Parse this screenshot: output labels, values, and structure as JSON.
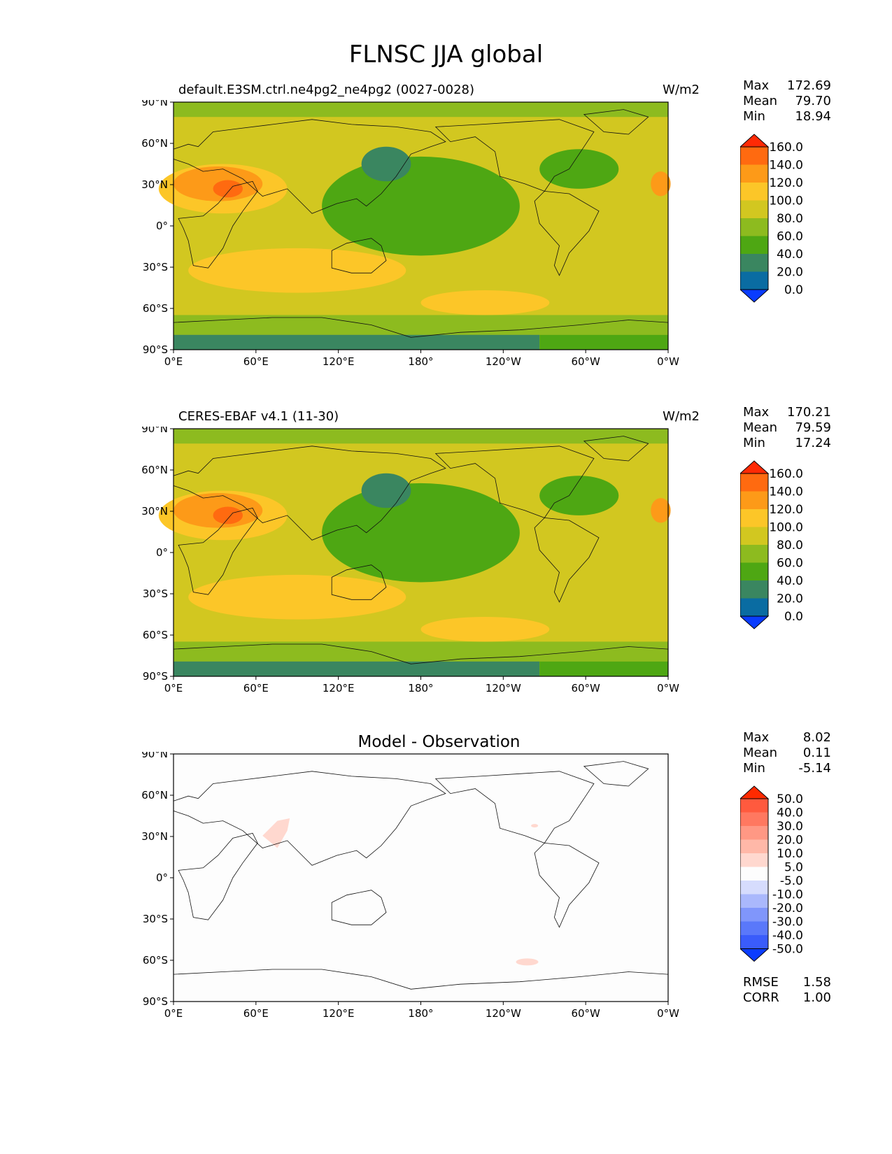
{
  "title": "FLNSC JJA global",
  "axes": {
    "lat_labels": [
      "90°N",
      "60°N",
      "30°N",
      "0°",
      "30°S",
      "60°S",
      "90°S"
    ],
    "lon_labels": [
      "0°E",
      "60°E",
      "120°E",
      "180°",
      "120°W",
      "60°W",
      "0°W"
    ]
  },
  "panels": [
    {
      "id": "model",
      "left_title": "default.E3SM.ctrl.ne4pg2_ne4pg2 (0027-0028)",
      "right_title": "W/m2",
      "center_title": "",
      "stats": [
        {
          "label": "Max",
          "value": "172.69"
        },
        {
          "label": "Mean",
          "value": "79.70"
        },
        {
          "label": "Min",
          "value": "18.94"
        }
      ],
      "colorbar": {
        "labels": [
          "160.0",
          "140.0",
          "120.0",
          "100.0",
          "80.0",
          "60.0",
          "40.0",
          "20.0",
          "0.0"
        ],
        "colors": [
          "#ff2a05",
          "#ff6a10",
          "#fd9a18",
          "#fcc628",
          "#d2c720",
          "#8dbb1f",
          "#4ea713",
          "#3a8660",
          "#0a6ca2",
          "#0a3cfe"
        ]
      }
    },
    {
      "id": "obs",
      "left_title": "CERES-EBAF v4.1 (11-30)",
      "right_title": "W/m2",
      "center_title": "",
      "stats": [
        {
          "label": "Max",
          "value": "170.21"
        },
        {
          "label": "Mean",
          "value": "79.59"
        },
        {
          "label": "Min",
          "value": "17.24"
        }
      ],
      "colorbar": {
        "labels": [
          "160.0",
          "140.0",
          "120.0",
          "100.0",
          "80.0",
          "60.0",
          "40.0",
          "20.0",
          "0.0"
        ],
        "colors": [
          "#ff2a05",
          "#ff6a10",
          "#fd9a18",
          "#fcc628",
          "#d2c720",
          "#8dbb1f",
          "#4ea713",
          "#3a8660",
          "#0a6ca2",
          "#0a3cfe"
        ]
      }
    },
    {
      "id": "diff",
      "left_title": "",
      "right_title": "",
      "center_title": "Model - Observation",
      "stats": [
        {
          "label": "Max",
          "value": "8.02"
        },
        {
          "label": "Mean",
          "value": "0.11"
        },
        {
          "label": "Min",
          "value": "-5.14"
        }
      ],
      "colorbar": {
        "labels": [
          "50.0",
          "40.0",
          "30.0",
          "20.0",
          "10.0",
          "5.0",
          "-5.0",
          "-10.0",
          "-20.0",
          "-30.0",
          "-40.0",
          "-50.0"
        ],
        "colors": [
          "#ff2a00",
          "#ff5a3e",
          "#ff7860",
          "#ff9884",
          "#ffb8a8",
          "#ffd8cf",
          "#fdfdfd",
          "#d6dcfd",
          "#aab8fc",
          "#8096fb",
          "#5a78fa",
          "#3a5cfb",
          "#0a3cff"
        ]
      },
      "rmse": [
        {
          "label": "RMSE",
          "value": "1.58"
        },
        {
          "label": "CORR",
          "value": "1.00"
        }
      ]
    }
  ]
}
